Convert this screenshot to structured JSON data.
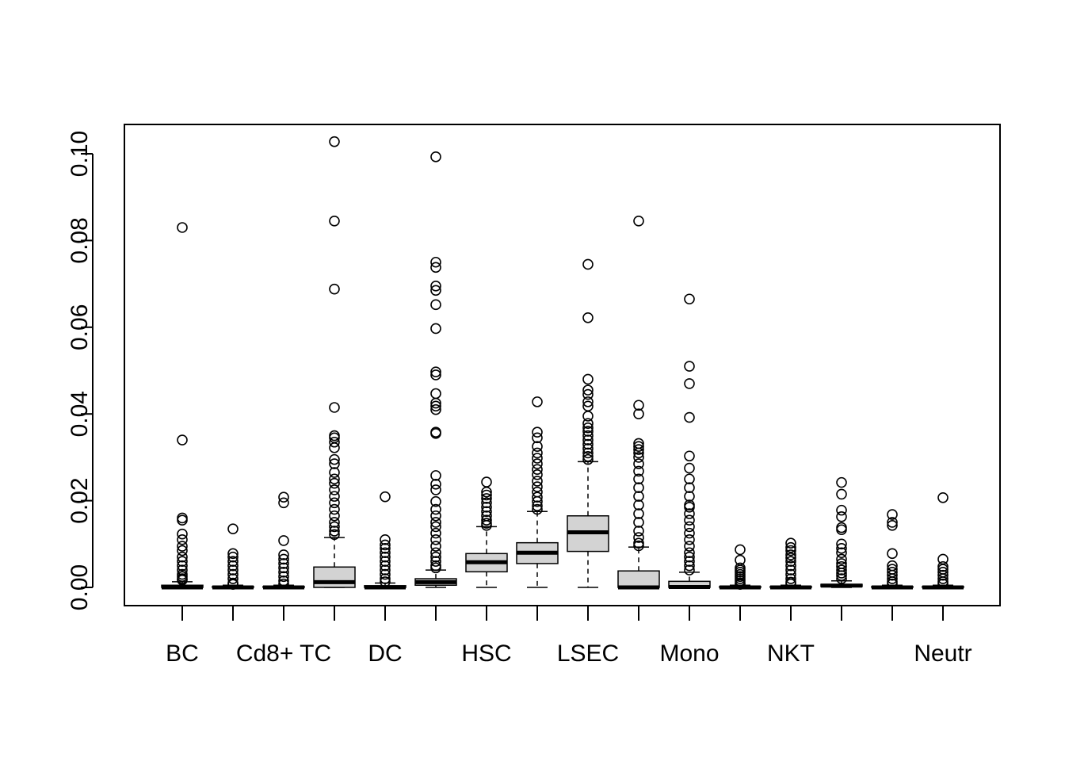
{
  "chart_data": {
    "type": "boxplot",
    "title": "",
    "xlabel": "",
    "ylabel": "",
    "ylim": [
      -0.004,
      0.104
    ],
    "y_ticks": [
      "0.00",
      "0.02",
      "0.04",
      "0.06",
      "0.08",
      "0.10"
    ],
    "y_tick_values": [
      0,
      0.02,
      0.04,
      0.06,
      0.08,
      0.1
    ],
    "x_tick_labels": [
      "BC",
      "",
      "Cd8+ TC",
      "",
      "DC",
      "",
      "HSC",
      "",
      "LSEC",
      "",
      "Mono",
      "",
      "NKT",
      "",
      "",
      "Neutr"
    ],
    "grid": false,
    "legend": "none",
    "box_fill": "#d3d3d3",
    "boxes": [
      {
        "label": "BC",
        "min": 0,
        "q1": 0,
        "median": 0,
        "q3": 0.0005,
        "max": 0.0013,
        "outliers": [
          0.083,
          0.034,
          0.016,
          0.0155,
          0.0123,
          0.011,
          0.0095,
          0.0085,
          0.007,
          0.006,
          0.005,
          0.004,
          0.003,
          0.0025,
          0.002,
          0.0017
        ]
      },
      {
        "label": "",
        "min": 0,
        "q1": 0,
        "median": 0,
        "q3": 0.0002,
        "max": 0.0005,
        "outliers": [
          0.0135,
          0.0078,
          0.007,
          0.006,
          0.005,
          0.004,
          0.003,
          0.002,
          0.001,
          0.0007
        ]
      },
      {
        "label": "Cd8+ TC",
        "min": 0,
        "q1": 0,
        "median": 0,
        "q3": 0.0002,
        "max": 0.0005,
        "outliers": [
          0.0208,
          0.0195,
          0.0108,
          0.0075,
          0.0065,
          0.0055,
          0.0045,
          0.0035,
          0.0025,
          0.0015,
          0.0008
        ]
      },
      {
        "label": "",
        "min": 0,
        "q1": 0,
        "median": 0.0012,
        "q3": 0.0047,
        "max": 0.0115,
        "outliers": [
          0.1028,
          0.0845,
          0.0688,
          0.0415,
          0.035,
          0.0345,
          0.0335,
          0.0322,
          0.0295,
          0.0285,
          0.0265,
          0.025,
          0.024,
          0.0225,
          0.021,
          0.0195,
          0.018,
          0.0165,
          0.015,
          0.014,
          0.013,
          0.0122
        ]
      },
      {
        "label": "DC",
        "min": 0,
        "q1": 0,
        "median": 0,
        "q3": 0.0004,
        "max": 0.001,
        "outliers": [
          0.0209,
          0.011,
          0.0098,
          0.009,
          0.008,
          0.007,
          0.006,
          0.005,
          0.004,
          0.003,
          0.002,
          0.0013
        ]
      },
      {
        "label": "",
        "min": 0,
        "q1": 0.0005,
        "median": 0.0012,
        "q3": 0.002,
        "max": 0.004,
        "outliers": [
          0.0993,
          0.075,
          0.0738,
          0.0695,
          0.0685,
          0.0652,
          0.0597,
          0.0497,
          0.049,
          0.0447,
          0.0425,
          0.0418,
          0.041,
          0.0358,
          0.0355,
          0.0258,
          0.0238,
          0.0225,
          0.0198,
          0.018,
          0.0165,
          0.015,
          0.014,
          0.0125,
          0.011,
          0.0095,
          0.008,
          0.007,
          0.006,
          0.005,
          0.0045
        ]
      },
      {
        "label": "HSC",
        "min": 0,
        "q1": 0.0036,
        "median": 0.0058,
        "q3": 0.0078,
        "max": 0.014,
        "outliers": [
          0.0243,
          0.022,
          0.0213,
          0.0205,
          0.0195,
          0.0185,
          0.0175,
          0.0165,
          0.0155,
          0.0148,
          0.0143
        ]
      },
      {
        "label": "",
        "min": 0,
        "q1": 0.0055,
        "median": 0.008,
        "q3": 0.0103,
        "max": 0.0175,
        "outliers": [
          0.0428,
          0.0358,
          0.0345,
          0.0325,
          0.031,
          0.0298,
          0.0285,
          0.0272,
          0.026,
          0.0245,
          0.0232,
          0.022,
          0.0208,
          0.0198,
          0.0188,
          0.018
        ]
      },
      {
        "label": "LSEC",
        "min": 0,
        "q1": 0.0083,
        "median": 0.0127,
        "q3": 0.0165,
        "max": 0.029,
        "outliers": [
          0.0745,
          0.0622,
          0.048,
          0.0455,
          0.0445,
          0.0428,
          0.0418,
          0.0395,
          0.0378,
          0.0368,
          0.036,
          0.035,
          0.034,
          0.033,
          0.032,
          0.031,
          0.0302,
          0.0295
        ]
      },
      {
        "label": "",
        "min": 0,
        "q1": 0,
        "median": 0,
        "q3": 0.0038,
        "max": 0.0093,
        "outliers": [
          0.0845,
          0.042,
          0.04,
          0.0332,
          0.0325,
          0.0318,
          0.031,
          0.03,
          0.0285,
          0.0268,
          0.025,
          0.023,
          0.021,
          0.019,
          0.017,
          0.015,
          0.013,
          0.0115,
          0.0102,
          0.0096
        ]
      },
      {
        "label": "Mono",
        "min": 0,
        "q1": 0,
        "median": 0.0001,
        "q3": 0.0014,
        "max": 0.0035,
        "outliers": [
          0.0665,
          0.051,
          0.047,
          0.0392,
          0.0303,
          0.0275,
          0.025,
          0.023,
          0.021,
          0.019,
          0.0185,
          0.017,
          0.0155,
          0.014,
          0.0125,
          0.011,
          0.0095,
          0.008,
          0.007,
          0.006,
          0.005,
          0.004
        ]
      },
      {
        "label": "",
        "min": 0,
        "q1": 0,
        "median": 0,
        "q3": 0.0002,
        "max": 0.0005,
        "outliers": [
          0.0087,
          0.0063,
          0.0045,
          0.004,
          0.0035,
          0.003,
          0.0025,
          0.002,
          0.0015,
          0.001,
          0.0007
        ]
      },
      {
        "label": "NKT",
        "min": 0,
        "q1": 0,
        "median": 0,
        "q3": 0.0002,
        "max": 0.0005,
        "outliers": [
          0.0102,
          0.0092,
          0.0085,
          0.0075,
          0.0068,
          0.006,
          0.005,
          0.004,
          0.003,
          0.002,
          0.0012,
          0.0008
        ]
      },
      {
        "label": "",
        "min": 0,
        "q1": 0.0002,
        "median": 0.0004,
        "q3": 0.0007,
        "max": 0.0015,
        "outliers": [
          0.0242,
          0.0215,
          0.0178,
          0.0163,
          0.0138,
          0.0133,
          0.01,
          0.009,
          0.008,
          0.0065,
          0.0055,
          0.0048,
          0.004,
          0.0033,
          0.0027,
          0.002
        ]
      },
      {
        "label": "",
        "min": 0,
        "q1": 0,
        "median": 0,
        "q3": 0.0002,
        "max": 0.0005,
        "outliers": [
          0.0168,
          0.015,
          0.0143,
          0.0078,
          0.005,
          0.0042,
          0.0035,
          0.0028,
          0.002,
          0.0013,
          0.0008
        ]
      },
      {
        "label": "Neutr",
        "min": 0,
        "q1": 0,
        "median": 0,
        "q3": 0.0002,
        "max": 0.0005,
        "outliers": [
          0.0207,
          0.0065,
          0.0048,
          0.0042,
          0.0035,
          0.0028,
          0.002,
          0.0013,
          0.0008
        ]
      }
    ]
  }
}
